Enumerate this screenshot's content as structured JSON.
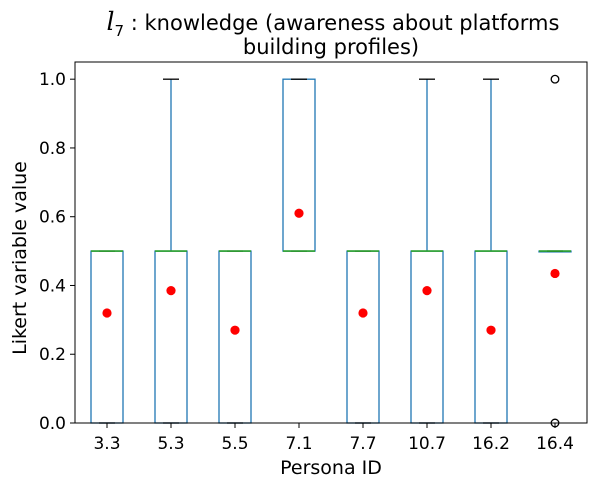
{
  "chart_data": {
    "type": "box",
    "title_symbol": "l",
    "title_subscript": "7",
    "title_line1": " : knowledge (awareness about platforms",
    "title_line2": "building profiles)",
    "xlabel": "Persona ID",
    "ylabel": "Likert variable value",
    "ylim": [
      0,
      1.05
    ],
    "yticks": [
      "0.0",
      "0.2",
      "0.4",
      "0.6",
      "0.8",
      "1.0"
    ],
    "ytick_values": [
      0,
      0.2,
      0.4,
      0.6,
      0.8,
      1.0
    ],
    "grid": false,
    "colors": {
      "box": "#1f77b4",
      "median": "#2ca02c",
      "mean": "#ff0000",
      "whisker_cap": "#000000",
      "flier": "#000000"
    },
    "categories": [
      "3.3",
      "5.3",
      "5.5",
      "7.1",
      "7.7",
      "10.7",
      "16.2",
      "16.4"
    ],
    "boxes": [
      {
        "label": "3.3",
        "whisker_low": 0,
        "q1": 0,
        "median": 0.5,
        "q3": 0.5,
        "whisker_high": 0.5,
        "mean": 0.32,
        "fliers": []
      },
      {
        "label": "5.3",
        "whisker_low": 0,
        "q1": 0,
        "median": 0.5,
        "q3": 0.5,
        "whisker_high": 1.0,
        "mean": 0.385,
        "fliers": []
      },
      {
        "label": "5.5",
        "whisker_low": 0,
        "q1": 0,
        "median": 0.5,
        "q3": 0.5,
        "whisker_high": 0.5,
        "mean": 0.27,
        "fliers": []
      },
      {
        "label": "7.1",
        "whisker_low": 0.5,
        "q1": 0.5,
        "median": 0.5,
        "q3": 1.0,
        "whisker_high": 1.0,
        "mean": 0.61,
        "fliers": []
      },
      {
        "label": "7.7",
        "whisker_low": 0,
        "q1": 0,
        "median": 0.5,
        "q3": 0.5,
        "whisker_high": 0.5,
        "mean": 0.32,
        "fliers": []
      },
      {
        "label": "10.7",
        "whisker_low": 0,
        "q1": 0,
        "median": 0.5,
        "q3": 0.5,
        "whisker_high": 1.0,
        "mean": 0.385,
        "fliers": []
      },
      {
        "label": "16.2",
        "whisker_low": 0,
        "q1": 0,
        "median": 0.5,
        "q3": 0.5,
        "whisker_high": 1.0,
        "mean": 0.27,
        "fliers": []
      },
      {
        "label": "16.4",
        "whisker_low": 0.5,
        "q1": 0.5,
        "median": 0.5,
        "q3": 0.5,
        "whisker_high": 0.5,
        "mean": 0.435,
        "fliers": [
          1.0,
          0.0
        ]
      }
    ]
  }
}
